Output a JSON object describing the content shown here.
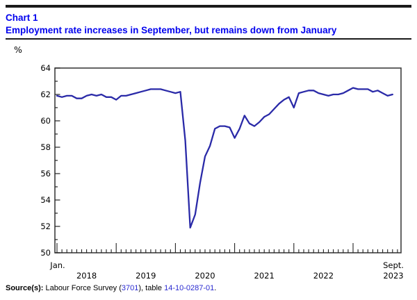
{
  "header": {
    "chart_label": "Chart 1",
    "title": "Employment rate increases in September, but remains down from January",
    "title_color": "#0202ee"
  },
  "chart": {
    "y_unit": "%"
  },
  "chart_data": {
    "type": "line",
    "title": "Employment rate increases in September, but remains down from January",
    "ylabel": "%",
    "xlabel": "",
    "ylim": [
      50,
      64
    ],
    "ytick_step": 2,
    "grid": false,
    "legend_position": "none",
    "line_color": "#2a2aa8",
    "x_start": "2018-01",
    "x_end": "2023-09",
    "x_axis": {
      "first_month_label": "Jan.",
      "year_labels": [
        "2018",
        "2019",
        "2020",
        "2021",
        "2022"
      ],
      "end_month_label": "Sept.",
      "end_year_label": "2023"
    },
    "series": [
      {
        "name": "Employment rate",
        "values": [
          61.9,
          61.8,
          61.9,
          61.9,
          61.7,
          61.7,
          61.9,
          62.0,
          61.9,
          62.0,
          61.8,
          61.8,
          61.6,
          61.9,
          61.9,
          62.0,
          62.1,
          62.2,
          62.3,
          62.4,
          62.4,
          62.4,
          62.3,
          62.2,
          62.1,
          62.2,
          58.5,
          51.9,
          52.9,
          55.3,
          57.3,
          58.1,
          59.4,
          59.6,
          59.6,
          59.5,
          58.7,
          59.4,
          60.4,
          59.8,
          59.6,
          59.9,
          60.3,
          60.5,
          60.9,
          61.3,
          61.6,
          61.8,
          61.0,
          62.1,
          62.2,
          62.3,
          62.3,
          62.1,
          62.0,
          61.9,
          62.0,
          62.0,
          62.1,
          62.3,
          62.5,
          62.4,
          62.4,
          62.4,
          62.2,
          62.3,
          62.1,
          61.9,
          62.0
        ]
      }
    ]
  },
  "source": {
    "label": "Source(s):",
    "text_before_link1": " Labour Force Survey (",
    "link1": "3701",
    "text_between": "), table ",
    "link2": "14-10-0287-01",
    "text_after": ".",
    "link_color": "#2a2ad0"
  }
}
